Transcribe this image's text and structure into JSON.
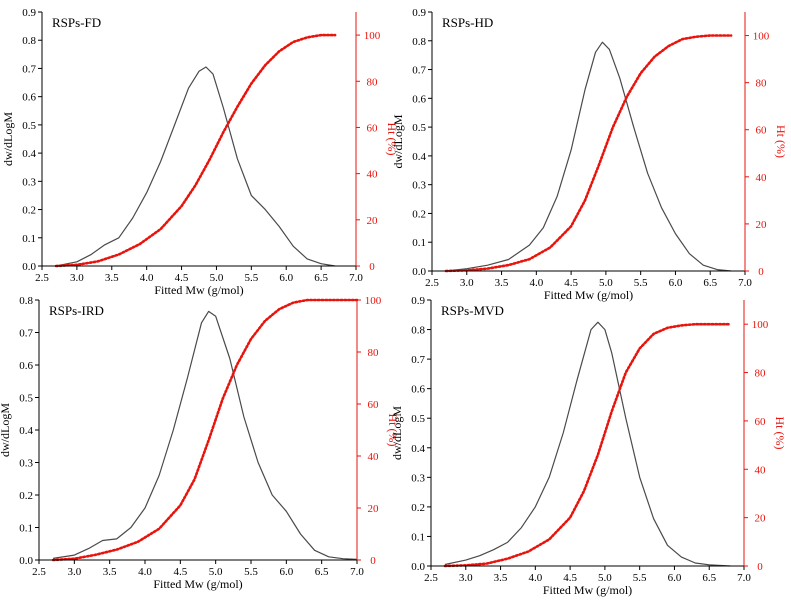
{
  "colors": {
    "dw_line": "#4a4a4a",
    "ht_line": "#e8140c",
    "axis": "#000000",
    "ht_axis": "#e8140c"
  },
  "chart_data": [
    {
      "type": "line",
      "title": "RSPs-FD",
      "xlabel": "Fitted Mw (g/mol)",
      "ylabel": "dw/dLogM",
      "y2label": "Ht (%)",
      "xlim": [
        2.5,
        7.0
      ],
      "ylim": [
        0,
        0.9
      ],
      "y2lim": [
        0,
        110
      ],
      "xticks": [
        2.5,
        3.0,
        3.5,
        4.0,
        4.5,
        5.0,
        5.5,
        6.0,
        6.5,
        7.0
      ],
      "xtick_labels": [
        "2.5",
        "3.0",
        "3.5",
        "4.0",
        "4.5",
        "5.0",
        "5.5",
        "6.0",
        "6.5",
        "7.0"
      ],
      "yticks": [
        0.0,
        0.1,
        0.2,
        0.3,
        0.4,
        0.5,
        0.6,
        0.7,
        0.8,
        0.9
      ],
      "ytick_labels": [
        "0.0",
        "0.1",
        "0.2",
        "0.3",
        "0.4",
        "0.5",
        "0.6",
        "0.7",
        "0.8",
        "0.9"
      ],
      "y2ticks": [
        0,
        20,
        40,
        60,
        80,
        100
      ],
      "y2tick_labels": [
        "0",
        "20",
        "40",
        "60",
        "80",
        "100"
      ],
      "series": [
        {
          "name": "dw/dLogM",
          "axis": "left",
          "style": "solid",
          "x": [
            2.7,
            3.0,
            3.2,
            3.4,
            3.6,
            3.8,
            4.0,
            4.2,
            4.4,
            4.6,
            4.75,
            4.85,
            4.95,
            5.1,
            5.3,
            5.5,
            5.7,
            5.9,
            6.1,
            6.3,
            6.5,
            6.7
          ],
          "y": [
            0.0,
            0.015,
            0.04,
            0.075,
            0.1,
            0.17,
            0.26,
            0.37,
            0.5,
            0.63,
            0.69,
            0.705,
            0.68,
            0.56,
            0.38,
            0.25,
            0.2,
            0.14,
            0.07,
            0.025,
            0.008,
            0.0
          ]
        },
        {
          "name": "Ht (%)",
          "axis": "right",
          "style": "dotted",
          "x": [
            2.7,
            3.0,
            3.3,
            3.6,
            3.9,
            4.2,
            4.5,
            4.7,
            4.9,
            5.1,
            5.3,
            5.5,
            5.7,
            5.9,
            6.1,
            6.3,
            6.5,
            6.7
          ],
          "y": [
            0,
            0.5,
            2,
            5,
            9.5,
            16,
            26,
            35,
            46,
            58,
            69,
            79,
            87,
            93,
            97,
            99,
            100,
            100
          ]
        }
      ]
    },
    {
      "type": "line",
      "title": "RSPs-HD",
      "xlabel": "Fitted Mw (g/mol)",
      "ylabel": "dw/dLogM",
      "y2label": "Ht (%)",
      "xlim": [
        2.5,
        7.0
      ],
      "ylim": [
        0,
        0.9
      ],
      "y2lim": [
        0,
        110
      ],
      "xticks": [
        2.5,
        3.0,
        3.5,
        4.0,
        4.5,
        5.0,
        5.5,
        6.0,
        6.5,
        7.0
      ],
      "xtick_labels": [
        "2.5",
        "3.0",
        "3.5",
        "4.0",
        "4.5",
        "5.0",
        "5.5",
        "6.0",
        "6.5",
        "7.0"
      ],
      "yticks": [
        0.0,
        0.1,
        0.2,
        0.3,
        0.4,
        0.5,
        0.6,
        0.7,
        0.8,
        0.9
      ],
      "ytick_labels": [
        "0.0",
        "0.1",
        "0.2",
        "0.3",
        "0.4",
        "0.5",
        "0.6",
        "0.7",
        "0.8",
        "0.9"
      ],
      "y2ticks": [
        0,
        20,
        40,
        60,
        80,
        100
      ],
      "y2tick_labels": [
        "0",
        "20",
        "40",
        "60",
        "80",
        "100"
      ],
      "series": [
        {
          "name": "dw/dLogM",
          "axis": "left",
          "style": "solid",
          "x": [
            2.7,
            3.0,
            3.3,
            3.6,
            3.9,
            4.1,
            4.3,
            4.5,
            4.7,
            4.85,
            4.95,
            5.05,
            5.2,
            5.4,
            5.6,
            5.8,
            6.0,
            6.2,
            6.4,
            6.6,
            6.8
          ],
          "y": [
            0.0,
            0.008,
            0.02,
            0.04,
            0.09,
            0.15,
            0.26,
            0.42,
            0.63,
            0.76,
            0.795,
            0.77,
            0.67,
            0.5,
            0.34,
            0.22,
            0.13,
            0.06,
            0.02,
            0.005,
            0.0
          ]
        },
        {
          "name": "Ht (%)",
          "axis": "right",
          "style": "dotted",
          "x": [
            2.7,
            3.0,
            3.3,
            3.6,
            3.9,
            4.2,
            4.5,
            4.7,
            4.9,
            5.1,
            5.3,
            5.5,
            5.7,
            5.9,
            6.1,
            6.3,
            6.5,
            6.8
          ],
          "y": [
            0,
            0.3,
            1,
            2.5,
            5,
            10,
            19,
            30,
            45,
            61,
            74,
            84,
            91,
            95.5,
            98.5,
            99.5,
            100,
            100
          ]
        }
      ]
    },
    {
      "type": "line",
      "title": "RSPs-IRD",
      "xlabel": "Fitted Mw (g/mol)",
      "ylabel": "dw/dLogM",
      "y2label": "Ht (%)",
      "xlim": [
        2.5,
        7.0
      ],
      "ylim": [
        0,
        0.8
      ],
      "y2lim": [
        0,
        100
      ],
      "xticks": [
        2.5,
        3.0,
        3.5,
        4.0,
        4.5,
        5.0,
        5.5,
        6.0,
        6.5,
        7.0
      ],
      "xtick_labels": [
        "2.5",
        "3.0",
        "3.5",
        "4.0",
        "4.5",
        "5.0",
        "5.5",
        "6.0",
        "6.5",
        "7.0"
      ],
      "yticks": [
        0.0,
        0.1,
        0.2,
        0.3,
        0.4,
        0.5,
        0.6,
        0.7,
        0.8
      ],
      "ytick_labels": [
        "0.0",
        "0.1",
        "0.2",
        "0.3",
        "0.4",
        "0.5",
        "0.6",
        "0.7",
        "0.8"
      ],
      "y2ticks": [
        0,
        20,
        40,
        60,
        80,
        100
      ],
      "y2tick_labels": [
        "0",
        "20",
        "40",
        "60",
        "80",
        "100"
      ],
      "series": [
        {
          "name": "dw/dLogM",
          "axis": "left",
          "style": "solid",
          "x": [
            2.7,
            3.0,
            3.2,
            3.4,
            3.6,
            3.8,
            4.0,
            4.2,
            4.4,
            4.6,
            4.8,
            4.9,
            5.0,
            5.2,
            5.4,
            5.6,
            5.8,
            6.0,
            6.2,
            6.4,
            6.6,
            6.8,
            7.0
          ],
          "y": [
            0.005,
            0.015,
            0.035,
            0.06,
            0.065,
            0.1,
            0.16,
            0.26,
            0.4,
            0.56,
            0.73,
            0.765,
            0.75,
            0.62,
            0.44,
            0.3,
            0.2,
            0.15,
            0.08,
            0.03,
            0.01,
            0.004,
            0.002
          ]
        },
        {
          "name": "Ht (%)",
          "axis": "right",
          "style": "dotted",
          "x": [
            2.7,
            3.0,
            3.3,
            3.6,
            3.9,
            4.2,
            4.5,
            4.7,
            4.9,
            5.1,
            5.3,
            5.5,
            5.7,
            5.9,
            6.1,
            6.3,
            6.5,
            6.8,
            7.0
          ],
          "y": [
            0,
            0.5,
            2,
            4,
            7,
            12,
            21,
            31,
            46,
            62,
            75,
            85,
            92,
            96.5,
            99,
            100,
            100,
            100,
            100
          ]
        }
      ]
    },
    {
      "type": "line",
      "title": "RSPs-MVD",
      "xlabel": "Fitted Mw (g/mol)",
      "ylabel": "dw/dLogM",
      "y2label": "Ht (%)",
      "xlim": [
        2.5,
        7.0
      ],
      "ylim": [
        0,
        0.9
      ],
      "y2lim": [
        0,
        110
      ],
      "xticks": [
        2.5,
        3.0,
        3.5,
        4.0,
        4.5,
        5.0,
        5.5,
        6.0,
        6.5,
        7.0
      ],
      "xtick_labels": [
        "2.5",
        "3.0",
        "3.5",
        "4.0",
        "4.5",
        "5.0",
        "5.5",
        "6.0",
        "6.5",
        "7.0"
      ],
      "yticks": [
        0.0,
        0.1,
        0.2,
        0.3,
        0.4,
        0.5,
        0.6,
        0.7,
        0.8,
        0.9
      ],
      "ytick_labels": [
        "0.0",
        "0.1",
        "0.2",
        "0.3",
        "0.4",
        "0.5",
        "0.6",
        "0.7",
        "0.8",
        "0.9"
      ],
      "y2ticks": [
        0,
        20,
        40,
        60,
        80,
        100
      ],
      "y2tick_labels": [
        "0",
        "20",
        "40",
        "60",
        "80",
        "100"
      ],
      "series": [
        {
          "name": "dw/dLogM",
          "axis": "left",
          "style": "solid",
          "x": [
            2.7,
            3.0,
            3.2,
            3.4,
            3.6,
            3.8,
            4.0,
            4.2,
            4.4,
            4.6,
            4.8,
            4.9,
            5.0,
            5.1,
            5.3,
            5.5,
            5.7,
            5.9,
            6.1,
            6.3,
            6.5,
            6.8
          ],
          "y": [
            0.005,
            0.02,
            0.035,
            0.055,
            0.08,
            0.13,
            0.2,
            0.3,
            0.45,
            0.63,
            0.8,
            0.825,
            0.8,
            0.72,
            0.5,
            0.3,
            0.16,
            0.07,
            0.03,
            0.01,
            0.004,
            0.0
          ]
        },
        {
          "name": "Ht (%)",
          "axis": "right",
          "style": "dotted",
          "x": [
            2.7,
            3.0,
            3.3,
            3.6,
            3.9,
            4.2,
            4.5,
            4.7,
            4.9,
            5.1,
            5.3,
            5.5,
            5.7,
            5.9,
            6.1,
            6.3,
            6.5,
            6.8
          ],
          "y": [
            0,
            0.3,
            1,
            3,
            6,
            11,
            20,
            31,
            46,
            64,
            80,
            90,
            96,
            98.5,
            99.5,
            100,
            100,
            100
          ]
        }
      ]
    }
  ]
}
